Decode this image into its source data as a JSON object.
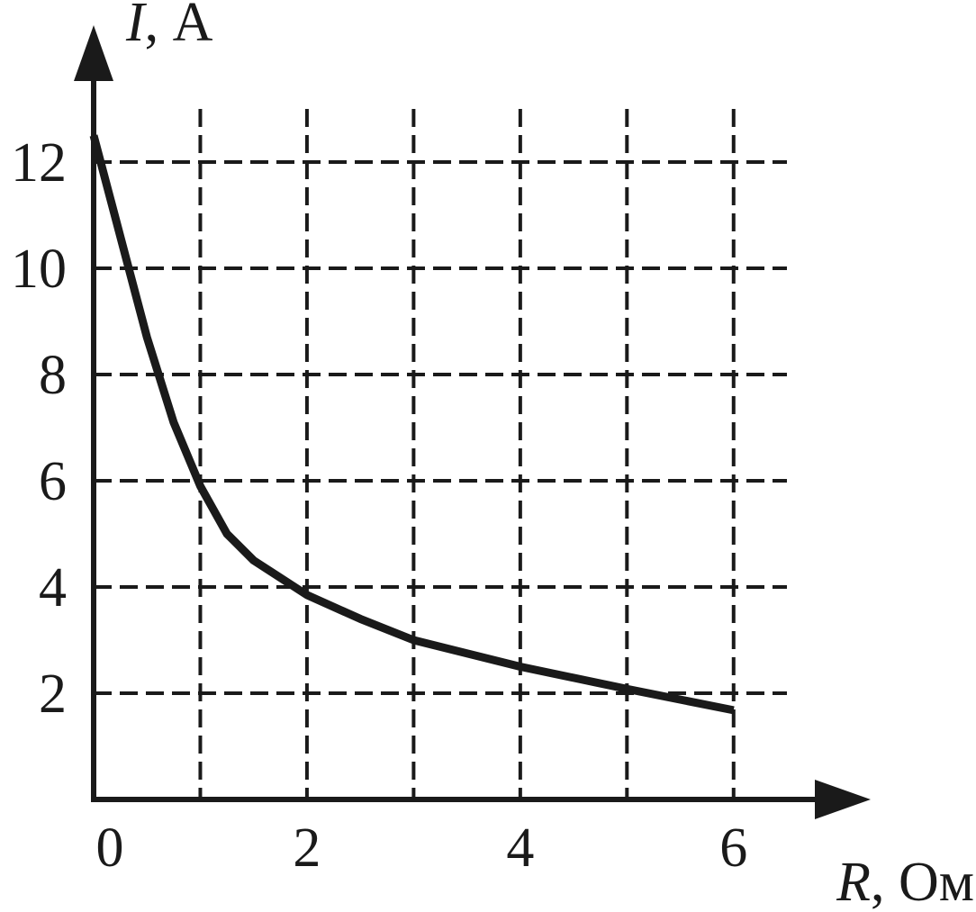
{
  "chart_data": {
    "type": "line",
    "xlabel": "R, Ом",
    "ylabel": "I, А",
    "x": [
      0,
      0.25,
      0.5,
      0.75,
      1,
      1.25,
      1.5,
      2,
      2.5,
      3,
      4,
      5,
      6
    ],
    "series": [
      {
        "color": "#1a1a1a",
        "values": [
          12.5,
          10.6,
          8.7,
          7.1,
          5.9,
          5.0,
          4.5,
          3.85,
          3.4,
          3.0,
          2.5,
          2.08,
          1.68
        ]
      }
    ],
    "xlim": [
      0,
      6.5
    ],
    "ylim": [
      0,
      13
    ],
    "xticks": [
      0,
      2,
      4,
      6
    ],
    "x_minor_ticks": [
      1,
      3,
      5
    ],
    "yticks": [
      2,
      4,
      6,
      8,
      10,
      12
    ],
    "grid": true
  }
}
